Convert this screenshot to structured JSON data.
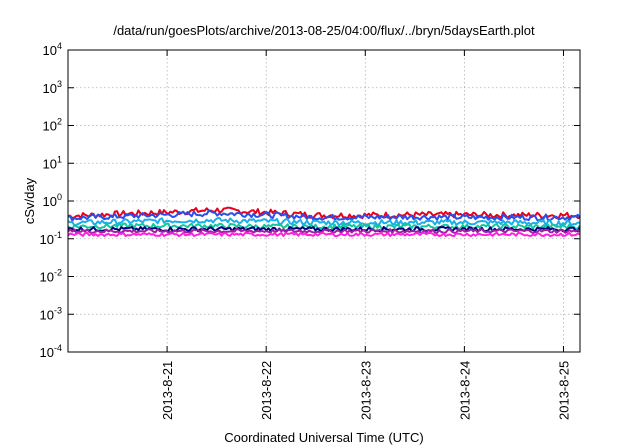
{
  "chart_data": {
    "type": "line",
    "title": "/data/run/goesPlots/archive/2013-08-25/04:00/flux/../bryn/5daysEarth.plot",
    "xlabel": "Coordinated Universal Time (UTC)",
    "ylabel": "cSv/day",
    "yscale": "log",
    "ylim": [
      0.0001,
      10000
    ],
    "xlim": [
      "2013-08-20 00:00",
      "2013-08-25 04:00"
    ],
    "y_ticks": [
      {
        "base": "10",
        "exp": "4",
        "value": 10000
      },
      {
        "base": "10",
        "exp": "3",
        "value": 1000
      },
      {
        "base": "10",
        "exp": "2",
        "value": 100
      },
      {
        "base": "10",
        "exp": "1",
        "value": 10
      },
      {
        "base": "10",
        "exp": "0",
        "value": 1
      },
      {
        "base": "10",
        "exp": "-1",
        "value": 0.1
      },
      {
        "base": "10",
        "exp": "-2",
        "value": 0.01
      },
      {
        "base": "10",
        "exp": "-3",
        "value": 0.001
      },
      {
        "base": "10",
        "exp": "-4",
        "value": 0.0001
      }
    ],
    "x_ticks": [
      "2013-8-21",
      "2013-8-22",
      "2013-8-23",
      "2013-8-24",
      "2013-8-25"
    ],
    "grid": true,
    "series": [
      {
        "color": "#e8001c",
        "x": [
          "2013-08-20 00:00",
          "2013-08-20 12:00",
          "2013-08-21 00:00",
          "2013-08-21 12:00",
          "2013-08-22 00:00",
          "2013-08-22 12:00",
          "2013-08-23 00:00",
          "2013-08-23 12:00",
          "2013-08-24 00:00",
          "2013-08-24 12:00",
          "2013-08-25 00:00",
          "2013-08-25 04:00"
        ],
        "y": [
          0.4,
          0.45,
          0.5,
          0.58,
          0.5,
          0.42,
          0.42,
          0.43,
          0.43,
          0.42,
          0.42,
          0.42
        ]
      },
      {
        "color": "#2a4fe8",
        "x": [
          "2013-08-20 00:00",
          "2013-08-20 12:00",
          "2013-08-21 00:00",
          "2013-08-21 12:00",
          "2013-08-22 00:00",
          "2013-08-22 12:00",
          "2013-08-23 00:00",
          "2013-08-23 12:00",
          "2013-08-24 00:00",
          "2013-08-24 12:00",
          "2013-08-25 00:00",
          "2013-08-25 04:00"
        ],
        "y": [
          0.35,
          0.39,
          0.43,
          0.48,
          0.43,
          0.37,
          0.37,
          0.38,
          0.37,
          0.37,
          0.37,
          0.37
        ]
      },
      {
        "color": "#1aaeea",
        "x": [
          "2013-08-20 00:00",
          "2013-08-20 12:00",
          "2013-08-21 00:00",
          "2013-08-21 12:00",
          "2013-08-22 00:00",
          "2013-08-22 12:00",
          "2013-08-23 00:00",
          "2013-08-23 12:00",
          "2013-08-24 00:00",
          "2013-08-24 12:00",
          "2013-08-25 00:00",
          "2013-08-25 04:00"
        ],
        "y": [
          0.26,
          0.28,
          0.3,
          0.31,
          0.29,
          0.27,
          0.27,
          0.27,
          0.27,
          0.27,
          0.26,
          0.26
        ]
      },
      {
        "color": "#10c89c",
        "x": [
          "2013-08-20 00:00",
          "2013-08-20 12:00",
          "2013-08-21 00:00",
          "2013-08-21 12:00",
          "2013-08-22 00:00",
          "2013-08-22 12:00",
          "2013-08-23 00:00",
          "2013-08-23 12:00",
          "2013-08-24 00:00",
          "2013-08-24 12:00",
          "2013-08-25 00:00",
          "2013-08-25 04:00"
        ],
        "y": [
          0.21,
          0.22,
          0.22,
          0.22,
          0.21,
          0.21,
          0.21,
          0.21,
          0.21,
          0.21,
          0.21,
          0.21
        ]
      },
      {
        "color": "#000080",
        "x": [
          "2013-08-20 00:00",
          "2013-08-20 12:00",
          "2013-08-21 00:00",
          "2013-08-21 12:00",
          "2013-08-22 00:00",
          "2013-08-22 12:00",
          "2013-08-23 00:00",
          "2013-08-23 12:00",
          "2013-08-24 00:00",
          "2013-08-24 12:00",
          "2013-08-25 00:00",
          "2013-08-25 04:00"
        ],
        "y": [
          0.18,
          0.18,
          0.18,
          0.18,
          0.18,
          0.18,
          0.18,
          0.18,
          0.18,
          0.18,
          0.18,
          0.18
        ]
      },
      {
        "color": "#a020a0",
        "x": [
          "2013-08-20 00:00",
          "2013-08-20 12:00",
          "2013-08-21 00:00",
          "2013-08-21 12:00",
          "2013-08-22 00:00",
          "2013-08-22 12:00",
          "2013-08-23 00:00",
          "2013-08-23 12:00",
          "2013-08-24 00:00",
          "2013-08-24 12:00",
          "2013-08-25 00:00",
          "2013-08-25 04:00"
        ],
        "y": [
          0.16,
          0.16,
          0.16,
          0.16,
          0.16,
          0.16,
          0.16,
          0.16,
          0.16,
          0.16,
          0.16,
          0.16
        ]
      },
      {
        "color": "#ff20e0",
        "x": [
          "2013-08-20 00:00",
          "2013-08-20 12:00",
          "2013-08-21 00:00",
          "2013-08-21 12:00",
          "2013-08-22 00:00",
          "2013-08-22 12:00",
          "2013-08-23 00:00",
          "2013-08-23 12:00",
          "2013-08-24 00:00",
          "2013-08-24 12:00",
          "2013-08-25 00:00",
          "2013-08-25 04:00"
        ],
        "y": [
          0.13,
          0.13,
          0.13,
          0.13,
          0.13,
          0.13,
          0.13,
          0.13,
          0.13,
          0.13,
          0.13,
          0.13
        ]
      }
    ]
  }
}
